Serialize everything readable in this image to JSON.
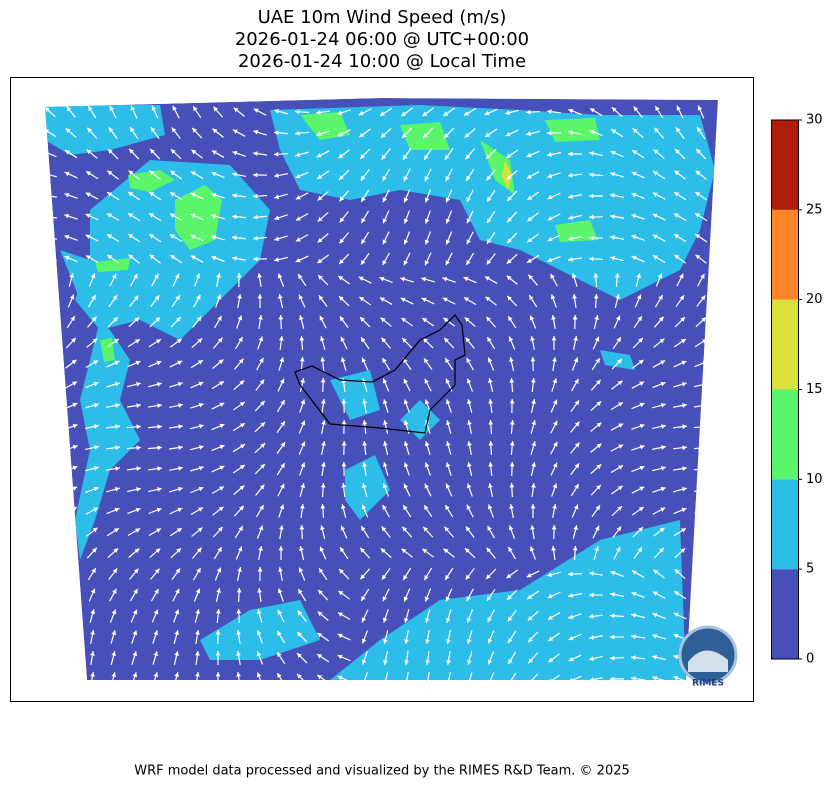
{
  "title": [
    "UAE 10m Wind Speed (m/s)",
    "2026-01-24 06:00 @ UTC+00:00",
    "2026-01-24 10:00 @ Local Time"
  ],
  "colorbar": {
    "levels": [
      0,
      5,
      10,
      15,
      20,
      25,
      30
    ],
    "colors": [
      "#474fb8",
      "#2dbde9",
      "#5af56b",
      "#d9e23a",
      "#fd8427",
      "#b01c0a"
    ]
  },
  "logo": {
    "text": "RIMES"
  },
  "footer": "WRF model data processed and visualized by the RIMES R&D Team. © 2025"
}
